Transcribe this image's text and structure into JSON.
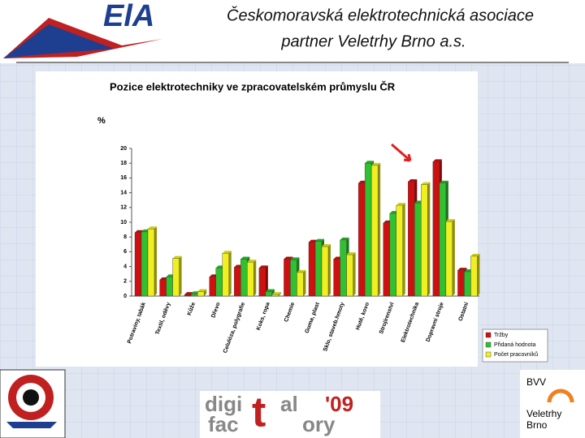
{
  "header": {
    "line1": "Českomoravská elektrotechnická asociace",
    "line2": "partner Veletrhy Brno a.s."
  },
  "logos": {
    "bvv": "BVV",
    "veletrhy": "Veletrhy",
    "brno": "Brno",
    "digi": "digi",
    "t1": "t",
    "al": "al",
    "year": "'09",
    "fac": "fac",
    "t2": "t",
    "ory": "ory"
  },
  "chart_data": {
    "type": "bar",
    "title": "Pozice elektrotechniky ve zpracovatelském průmyslu ČR",
    "y_label": "%",
    "categories": [
      "Potraviny, tabák",
      "Textil, oděvy",
      "Kůže",
      "Dřevo",
      "Celulóza, polygrafie",
      "Koks, ropa",
      "Chemie",
      "Guma, plast",
      "Sklo, staveb.hmoty",
      "Hutě, kovo",
      "Strojírenství",
      "Elektrotechnika",
      "Dopravní stroje",
      "Ostatní"
    ],
    "series": [
      {
        "name": "Tržby",
        "color": "#d01010",
        "values": [
          8.6,
          2.2,
          0.2,
          2.6,
          3.9,
          3.8,
          5.0,
          7.3,
          5.0,
          15.3,
          9.9,
          15.5,
          18.2,
          3.5
        ]
      },
      {
        "name": "Přidaná hodnota",
        "color": "#30c030",
        "values": [
          8.7,
          2.6,
          0.3,
          3.8,
          5.0,
          0.6,
          4.9,
          7.4,
          7.6,
          18.0,
          11.2,
          12.6,
          15.3,
          3.3
        ]
      },
      {
        "name": "Počet pracovníků",
        "color": "#f0f020",
        "values": [
          9.1,
          5.1,
          0.6,
          5.8,
          4.6,
          0.2,
          3.2,
          6.7,
          5.6,
          17.7,
          12.3,
          15.1,
          10.1,
          5.4
        ]
      }
    ],
    "ylim": [
      0,
      20
    ],
    "yticks": [
      0,
      2,
      4,
      6,
      8,
      10,
      12,
      14,
      16,
      18,
      20
    ],
    "legend": "bottom-right"
  }
}
